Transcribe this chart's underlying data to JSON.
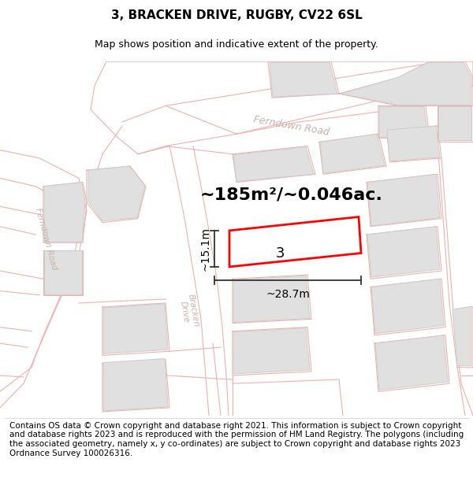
{
  "title": "3, BRACKEN DRIVE, RUGBY, CV22 6SL",
  "subtitle": "Map shows position and indicative extent of the property.",
  "copyright_text": "Contains OS data © Crown copyright and database right 2021. This information is subject to Crown copyright and database rights 2023 and is reproduced with the permission of HM Land Registry. The polygons (including the associated geometry, namely x, y co-ordinates) are subject to Crown copyright and database rights 2023 Ordnance Survey 100026316.",
  "area_label": "~185m²/~0.046ac.",
  "width_label": "~28.7m",
  "height_label": "~15.1m",
  "property_number": "3",
  "bg_color": "#ffffff",
  "road_line_color": "#f0b0b0",
  "building_fill": "#e0e0e0",
  "building_edge": "#cccccc",
  "property_color": "#ff0000",
  "road_label_color": "#c8b0b0",
  "dim_color": "#333333",
  "title_fontsize": 11,
  "subtitle_fontsize": 9,
  "copyright_fontsize": 7.5,
  "area_fontsize": 16,
  "dim_fontsize": 10,
  "prop_num_fontsize": 13,
  "road_label_fontsize": 9
}
